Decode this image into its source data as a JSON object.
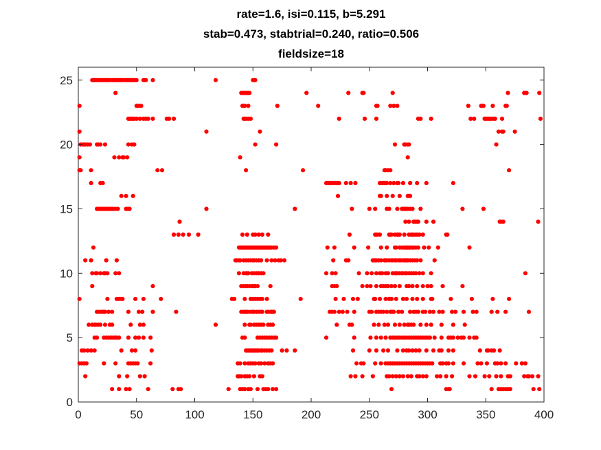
{
  "chart_data": {
    "type": "scatter",
    "title_lines": [
      "rate=1.6, isi=0.115, b=5.291",
      "stab=0.473, stabtrial=0.240, ratio=0.506",
      "fieldsize=18"
    ],
    "xlabel": "",
    "ylabel": "",
    "xlim": [
      0,
      400
    ],
    "ylim": [
      0,
      26
    ],
    "xticks": [
      0,
      50,
      100,
      150,
      200,
      250,
      300,
      350,
      400
    ],
    "yticks": [
      0,
      5,
      10,
      15,
      20,
      25
    ],
    "grid": false,
    "legend": "none",
    "marker_color": "#ff0000",
    "series": [
      {
        "rows": [
          {
            "y": 25,
            "x": [
              12,
              13,
              14,
              15,
              16,
              17,
              18,
              19,
              20,
              21,
              22,
              23,
              24,
              25,
              26,
              27,
              29,
              30,
              31,
              32,
              33,
              34,
              35,
              36,
              37,
              38,
              40,
              41,
              42,
              43,
              44,
              45,
              46,
              47,
              48,
              49,
              50,
              56,
              57,
              58,
              64,
              118,
              150,
              151,
              152
            ]
          },
          {
            "y": 24,
            "x": [
              32,
              140,
              141,
              142,
              143,
              144,
              145,
              146,
              147,
              196,
              232,
              244,
              245,
              270,
              369,
              383,
              384,
              385,
              396
            ]
          },
          {
            "y": 23,
            "x": [
              1,
              50,
              51,
              52,
              54,
              141,
              142,
              143,
              146,
              171,
              206,
              256,
              257,
              268,
              271,
              274,
              335,
              346,
              347,
              348,
              356,
              367,
              368
            ]
          },
          {
            "y": 22,
            "x": [
              43,
              44,
              45,
              46,
              47,
              48,
              50,
              53,
              56,
              58,
              60,
              64,
              76,
              78,
              82,
              142,
              143,
              144,
              146,
              148,
              224,
              246,
              256,
              292,
              294,
              303,
              337,
              340,
              349,
              350,
              351,
              352,
              353,
              354,
              355,
              357,
              358,
              364,
              397
            ]
          },
          {
            "y": 21,
            "x": [
              1,
              110,
              156,
              361,
              364,
              365,
              375
            ]
          },
          {
            "y": 20,
            "x": [
              2,
              4,
              5,
              6,
              8,
              10,
              16,
              17,
              19,
              23,
              43,
              46,
              48,
              152,
              170,
              272,
              280,
              281,
              283,
              284,
              359
            ]
          },
          {
            "y": 19,
            "x": [
              1,
              31,
              35,
              38,
              39,
              42,
              139,
              283
            ]
          },
          {
            "y": 18,
            "x": [
              1,
              2,
              11,
              68,
              72,
              144,
              193,
              263,
              264,
              266,
              268,
              370
            ]
          },
          {
            "y": 17,
            "x": [
              11,
              19,
              21,
              213,
              214,
              215,
              216,
              217,
              218,
              219,
              221,
              222,
              223,
              224,
              230,
              234,
              238,
              259,
              260,
              261,
              262,
              263,
              264,
              265,
              268,
              271,
              274,
              275,
              279,
              285,
              291,
              299,
              322
            ]
          },
          {
            "y": 16,
            "x": [
              37,
              41,
              47,
              223,
              259,
              260,
              265,
              270,
              276,
              283,
              284,
              285
            ]
          },
          {
            "y": 15,
            "x": [
              16,
              17,
              18,
              19,
              20,
              21,
              22,
              23,
              24,
              25,
              26,
              27,
              28,
              29,
              30,
              32,
              34,
              41,
              42,
              43,
              44,
              110,
              186,
              235,
              250,
              255,
              265,
              267,
              274,
              278,
              279,
              280,
              281,
              282,
              283,
              285,
              287,
              294,
              330,
              348
            ]
          },
          {
            "y": 14,
            "x": [
              87,
              281,
              284,
              288,
              289,
              290,
              291,
              292,
              299,
              305,
              362,
              363,
              365,
              395
            ]
          },
          {
            "y": 13,
            "x": [
              82,
              86,
              90,
              95,
              103,
              141,
              145,
              150,
              152,
              155,
              158,
              163,
              233,
              255,
              256,
              257,
              259,
              267,
              268,
              269,
              272,
              274,
              275,
              276,
              280,
              284,
              286,
              287,
              288,
              290,
              291,
              293,
              296,
              316,
              317
            ]
          },
          {
            "y": 12,
            "x": [
              13,
              138,
              139,
              140,
              141,
              142,
              143,
              144,
              145,
              146,
              147,
              148,
              149,
              150,
              151,
              152,
              153,
              154,
              155,
              156,
              157,
              158,
              159,
              160,
              161,
              162,
              163,
              164,
              165,
              166,
              168,
              170,
              214,
              220,
              237,
              249,
              260,
              265,
              272,
              273,
              276,
              278,
              280,
              281,
              282,
              283,
              284,
              285,
              287,
              288,
              290,
              292,
              297,
              301,
              309,
              336
            ]
          },
          {
            "y": 11,
            "x": [
              6,
              11,
              24,
              33,
              135,
              136,
              138,
              139,
              142,
              144,
              146,
              148,
              150,
              151,
              153,
              155,
              157,
              162,
              166,
              169,
              172,
              174,
              177,
              219,
              230,
              232,
              253,
              254,
              255,
              256,
              258,
              260,
              263,
              264,
              265,
              267,
              269,
              270,
              272,
              273,
              275,
              276,
              277,
              279,
              280,
              281,
              282,
              283,
              285,
              287,
              289,
              291,
              294,
              306
            ]
          },
          {
            "y": 10,
            "x": [
              12,
              15,
              16,
              19,
              22,
              23,
              25,
              32,
              35,
              138,
              142,
              144,
              145,
              146,
              149,
              151,
              153,
              155,
              157,
              159,
              213,
              218,
              221,
              241,
              248,
              252,
              256,
              259,
              261,
              264,
              266,
              270,
              272,
              273,
              274,
              276,
              278,
              279,
              281,
              282,
              284,
              286,
              288,
              290,
              293,
              296,
              303,
              384
            ]
          },
          {
            "y": 9,
            "x": [
              12,
              64,
              140,
              142,
              144,
              145,
              147,
              149,
              150,
              151,
              152,
              154,
              165,
              218,
              220,
              222,
              244,
              248,
              251,
              256,
              260,
              262,
              264,
              266,
              269,
              272,
              276,
              282,
              284,
              287,
              291,
              296,
              300,
              303,
              313,
              330
            ]
          },
          {
            "y": 8,
            "x": [
              1,
              25,
              33,
              35,
              37,
              38,
              49,
              56,
              71,
              132,
              134,
              143,
              148,
              150,
              152,
              154,
              156,
              158,
              162,
              191,
              221,
              228,
              236,
              240,
              254,
              255,
              259,
              264,
              267,
              269,
              273,
              279,
              282,
              287,
              291,
              296,
              303,
              304,
              320,
              338,
              356,
              370
            ]
          },
          {
            "y": 7,
            "x": [
              16,
              18,
              20,
              21,
              22,
              23,
              26,
              29,
              43,
              52,
              55,
              64,
              84,
              140,
              142,
              143,
              144,
              145,
              147,
              149,
              150,
              151,
              153,
              155,
              157,
              158,
              162,
              163,
              165,
              166,
              167,
              168,
              216,
              218,
              220,
              224,
              227,
              231,
              237,
              250,
              252,
              256,
              258,
              260,
              262,
              265,
              268,
              269,
              270,
              271,
              275,
              278,
              285,
              288,
              290,
              292,
              296,
              298,
              302,
              305,
              310,
              313,
              321,
              324,
              331,
              339,
              342,
              355,
              360,
              367,
              387
            ]
          },
          {
            "y": 6,
            "x": [
              9,
              12,
              14,
              15,
              17,
              19,
              23,
              27,
              29,
              45,
              53,
              56,
              118,
              143,
              147,
              148,
              151,
              153,
              155,
              157,
              159,
              163,
              165,
              167,
              222,
              233,
              235,
              254,
              258,
              263,
              266,
              272,
              276,
              280,
              283,
              284,
              286,
              288,
              294,
              299,
              303,
              312,
              322,
              332
            ]
          },
          {
            "y": 5,
            "x": [
              14,
              16,
              22,
              24,
              26,
              28,
              29,
              31,
              32,
              33,
              35,
              43,
              49,
              52,
              56,
              62,
              141,
              143,
              154,
              156,
              158,
              160,
              162,
              164,
              166,
              168,
              170,
              213,
              237,
              251,
              256,
              260,
              264,
              268,
              270,
              272,
              274,
              276,
              278,
              280,
              282,
              284,
              286,
              288,
              290,
              292,
              294,
              296,
              298,
              300,
              302,
              306,
              312,
              318,
              320,
              322,
              326,
              329,
              331,
              336,
              340,
              342
            ]
          },
          {
            "y": 4,
            "x": [
              3,
              5,
              8,
              11,
              14,
              37,
              46,
              49,
              63,
              144,
              145,
              146,
              147,
              148,
              149,
              150,
              151,
              152,
              153,
              154,
              155,
              157,
              158,
              160,
              162,
              164,
              166,
              175,
              179,
              186,
              236,
              250,
              256,
              262,
              266,
              274,
              279,
              282,
              284,
              287,
              290,
              293,
              299,
              305,
              310,
              312,
              318,
              322,
              345,
              351,
              352,
              355,
              357,
              362
            ]
          },
          {
            "y": 3,
            "x": [
              1,
              3,
              5,
              7,
              22,
              32,
              43,
              45,
              47,
              49,
              51,
              62,
              137,
              139,
              143,
              146,
              148,
              150,
              152,
              155,
              157,
              160,
              163,
              165,
              167,
              239,
              243,
              245,
              255,
              260,
              264,
              266,
              268,
              270,
              272,
              274,
              276,
              278,
              280,
              282,
              284,
              286,
              288,
              290,
              292,
              294,
              296,
              298,
              300,
              302,
              304,
              311,
              313,
              316,
              318,
              322,
              331,
              343,
              346,
              351,
              358,
              360,
              363,
              367,
              376,
              381,
              384
            ]
          },
          {
            "y": 2,
            "x": [
              6,
              35,
              42,
              53,
              57,
              137,
              138,
              140,
              143,
              145,
              147,
              151,
              156,
              158,
              234,
              238,
              244,
              253,
              265,
              267,
              270,
              273,
              276,
              279,
              283,
              286,
              291,
              293,
              296,
              299,
              308,
              311,
              316,
              321,
              336,
              341,
              349,
              353,
              359,
              363,
              369,
              371,
              383,
              386,
              387,
              390,
              395
            ]
          },
          {
            "y": 1,
            "x": [
              29,
              35,
              41,
              44,
              60,
              81,
              86,
              88,
              129,
              139,
              141,
              143,
              146,
              148,
              154,
              159,
              161,
              163,
              167,
              170,
              269,
              316,
              318,
              319,
              355,
              361,
              363,
              365,
              367,
              369,
              371,
              391,
              396
            ]
          }
        ]
      }
    ]
  }
}
